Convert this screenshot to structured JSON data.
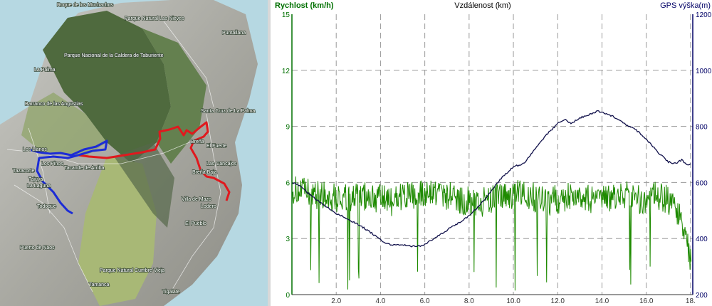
{
  "map": {
    "labels": [
      "Roque de los Muchachos",
      "Parque Natural Las Nieves",
      "Puntallana",
      "Parque Nacional de la Caldera de Taburiente",
      "La Palma",
      "Barranco de las Angustias",
      "Santa Cruz de La Palma",
      "Los Llanos",
      "Breña",
      "El Fuerte",
      "Tazacorte",
      "Tacande de Arriba",
      "Los Pinos",
      "Las Cancajos",
      "Tajuya",
      "Breña Baja",
      "La Laguna",
      "Villa de Mazo",
      "Lodero",
      "Todoque",
      "El Pueblo",
      "Puerto de Naos",
      "Parque Natural Cumbre Vieja",
      "Tamanca",
      "Tigalate"
    ],
    "colors": {
      "route_red": "#e0191e",
      "route_blue": "#1c2cd6",
      "sea": "#b6d8e2"
    }
  },
  "chart_data": {
    "type": "line",
    "title": "Vzdálenost (km)",
    "xlabel": "Vzdálenost (km)",
    "ylabel_left": "Rychlost (km/h)",
    "ylabel_right": "GPS výška(m)",
    "xlim": [
      0,
      18.1
    ],
    "ylim_left": [
      0,
      15
    ],
    "ylim_right": [
      200,
      1200
    ],
    "x_ticks": [
      "2.0",
      "4.0",
      "6.0",
      "8.0",
      "10.0",
      "12.0",
      "14.0",
      "16.0",
      "18."
    ],
    "y_ticks_left": [
      "0",
      "3",
      "6",
      "9",
      "12",
      "15"
    ],
    "y_ticks_right": [
      "200",
      "400",
      "600",
      "800",
      "1000",
      "1200"
    ],
    "grid": true,
    "colors": {
      "speed": "#1e8a00",
      "altitude": "#10104a",
      "left_axis": "#007000",
      "right_axis": "#000066",
      "grid": "#9a9a9a"
    },
    "series": [
      {
        "name": "Rychlost (km/h)",
        "axis": "left",
        "x": [
          0.0,
          0.5,
          1.0,
          1.5,
          2.0,
          2.5,
          3.0,
          3.5,
          4.0,
          4.5,
          5.0,
          5.5,
          6.0,
          6.5,
          7.0,
          7.5,
          8.0,
          8.5,
          9.0,
          9.5,
          10.0,
          10.5,
          11.0,
          11.5,
          12.0,
          12.5,
          13.0,
          13.5,
          14.0,
          14.5,
          15.0,
          15.5,
          16.0,
          16.5,
          17.0,
          17.5,
          18.0
        ],
        "values": [
          5.6,
          5.5,
          5.4,
          5.3,
          5.2,
          5.1,
          5.2,
          5.3,
          5.1,
          5.0,
          5.3,
          5.2,
          5.4,
          5.5,
          5.3,
          5.1,
          5.0,
          4.9,
          5.1,
          5.2,
          5.3,
          5.4,
          5.2,
          5.0,
          5.1,
          5.3,
          5.2,
          5.1,
          5.0,
          5.2,
          5.4,
          5.2,
          5.0,
          5.3,
          5.1,
          4.2,
          2.0
        ]
      },
      {
        "name": "GPS výška(m)",
        "axis": "right",
        "x": [
          0.0,
          0.3,
          0.6,
          1.0,
          1.5,
          2.0,
          2.5,
          3.0,
          3.5,
          4.0,
          4.5,
          5.0,
          5.5,
          5.8,
          6.0,
          6.5,
          7.0,
          7.5,
          8.0,
          8.5,
          9.0,
          9.5,
          10.0,
          10.5,
          11.0,
          11.5,
          12.0,
          12.3,
          12.6,
          13.0,
          13.5,
          13.8,
          14.0,
          14.5,
          15.0,
          15.5,
          16.0,
          16.5,
          17.0,
          17.3,
          17.6,
          17.9,
          18.0
        ],
        "values": [
          600,
          590,
          570,
          545,
          515,
          490,
          470,
          450,
          425,
          395,
          375,
          378,
          372,
          373,
          380,
          405,
          430,
          455,
          480,
          520,
          570,
          620,
          655,
          670,
          720,
          770,
          810,
          825,
          810,
          830,
          845,
          855,
          850,
          835,
          810,
          790,
          755,
          710,
          673,
          668,
          680,
          660,
          665
        ]
      }
    ]
  }
}
